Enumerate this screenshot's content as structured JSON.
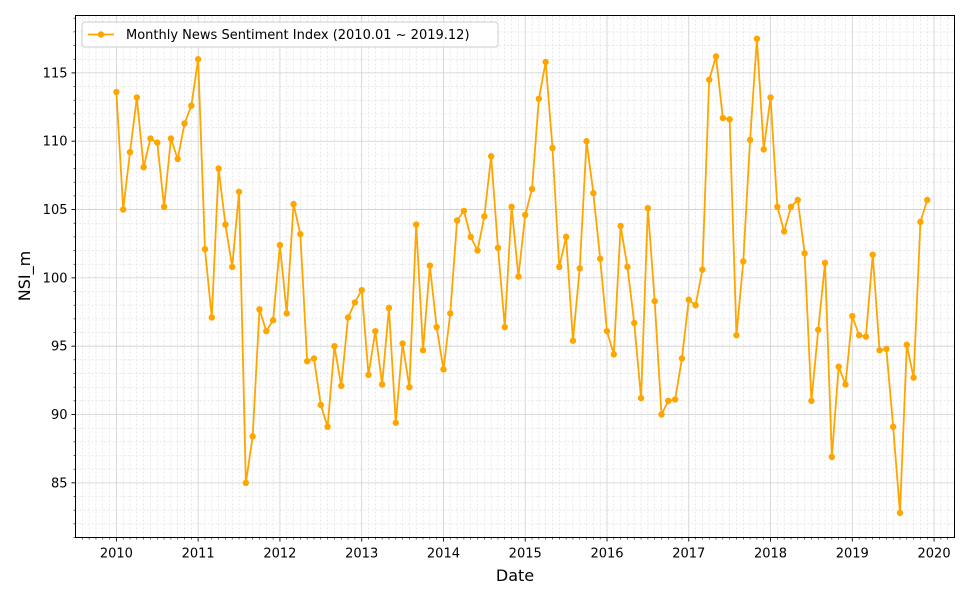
{
  "chart_data": {
    "type": "line",
    "title": "",
    "xlabel": "Date",
    "ylabel": "NSI_m",
    "legend": {
      "placement": "top-left",
      "entries": [
        "Monthly News Sentiment Index (2010.01 ~ 2019.12)"
      ]
    },
    "grid": true,
    "colors": {
      "series": "#FFA500",
      "grid": "#d9d9d9",
      "axis": "#000000"
    },
    "xlim": [
      "2009-07-01",
      "2020-04-01"
    ],
    "ylim": [
      81,
      119.2
    ],
    "x_ticks": [
      "2010",
      "2011",
      "2012",
      "2013",
      "2014",
      "2015",
      "2016",
      "2017",
      "2018",
      "2019",
      "2020"
    ],
    "y_ticks": [
      85,
      90,
      95,
      100,
      105,
      110,
      115
    ],
    "series": [
      {
        "name": "Monthly News Sentiment Index (2010.01 ~ 2019.12)",
        "x": [
          "2010-01",
          "2010-02",
          "2010-03",
          "2010-04",
          "2010-05",
          "2010-06",
          "2010-07",
          "2010-08",
          "2010-09",
          "2010-10",
          "2010-11",
          "2010-12",
          "2011-01",
          "2011-02",
          "2011-03",
          "2011-04",
          "2011-05",
          "2011-06",
          "2011-07",
          "2011-08",
          "2011-09",
          "2011-10",
          "2011-11",
          "2011-12",
          "2012-01",
          "2012-02",
          "2012-03",
          "2012-04",
          "2012-05",
          "2012-06",
          "2012-07",
          "2012-08",
          "2012-09",
          "2012-10",
          "2012-11",
          "2012-12",
          "2013-01",
          "2013-02",
          "2013-03",
          "2013-04",
          "2013-05",
          "2013-06",
          "2013-07",
          "2013-08",
          "2013-09",
          "2013-10",
          "2013-11",
          "2013-12",
          "2014-01",
          "2014-02",
          "2014-03",
          "2014-04",
          "2014-05",
          "2014-06",
          "2014-07",
          "2014-08",
          "2014-09",
          "2014-10",
          "2014-11",
          "2014-12",
          "2015-01",
          "2015-02",
          "2015-03",
          "2015-04",
          "2015-05",
          "2015-06",
          "2015-07",
          "2015-08",
          "2015-09",
          "2015-10",
          "2015-11",
          "2015-12",
          "2016-01",
          "2016-02",
          "2016-03",
          "2016-04",
          "2016-05",
          "2016-06",
          "2016-07",
          "2016-08",
          "2016-09",
          "2016-10",
          "2016-11",
          "2016-12",
          "2017-01",
          "2017-02",
          "2017-03",
          "2017-04",
          "2017-05",
          "2017-06",
          "2017-07",
          "2017-08",
          "2017-09",
          "2017-10",
          "2017-11",
          "2017-12",
          "2018-01",
          "2018-02",
          "2018-03",
          "2018-04",
          "2018-05",
          "2018-06",
          "2018-07",
          "2018-08",
          "2018-09",
          "2018-10",
          "2018-11",
          "2018-12",
          "2019-01",
          "2019-02",
          "2019-03",
          "2019-04",
          "2019-05",
          "2019-06",
          "2019-07",
          "2019-08",
          "2019-09",
          "2019-10",
          "2019-11",
          "2019-12"
        ],
        "values": [
          113.6,
          105.0,
          109.2,
          113.2,
          108.1,
          110.2,
          109.9,
          105.2,
          110.2,
          108.7,
          111.3,
          112.6,
          116.0,
          102.1,
          97.1,
          108.0,
          103.9,
          100.8,
          106.3,
          85.0,
          88.4,
          97.7,
          96.1,
          96.9,
          102.4,
          97.4,
          105.4,
          103.2,
          93.9,
          94.1,
          90.7,
          89.1,
          95.0,
          92.1,
          97.1,
          98.2,
          99.1,
          92.9,
          96.1,
          92.2,
          97.8,
          89.4,
          95.2,
          92.0,
          103.9,
          94.7,
          100.9,
          96.4,
          93.3,
          97.4,
          104.2,
          104.9,
          103.0,
          102.0,
          104.5,
          108.9,
          102.2,
          96.4,
          105.2,
          100.1,
          104.6,
          106.5,
          113.1,
          115.8,
          109.5,
          100.8,
          103.0,
          95.4,
          100.7,
          110.0,
          106.2,
          101.4,
          96.1,
          94.4,
          103.8,
          100.8,
          96.7,
          91.2,
          105.1,
          98.3,
          90.0,
          91.0,
          91.1,
          94.1,
          98.4,
          98.0,
          100.6,
          114.5,
          116.2,
          111.7,
          111.6,
          95.8,
          101.2,
          110.1,
          117.5,
          109.4,
          113.2,
          105.2,
          103.4,
          105.2,
          105.7,
          101.8,
          91.0,
          96.2,
          101.1,
          86.9,
          93.5,
          92.2,
          97.2,
          95.8,
          95.7,
          101.7,
          94.7,
          94.8,
          89.1,
          82.8,
          95.1,
          92.7,
          104.1,
          105.7
        ]
      }
    ]
  }
}
